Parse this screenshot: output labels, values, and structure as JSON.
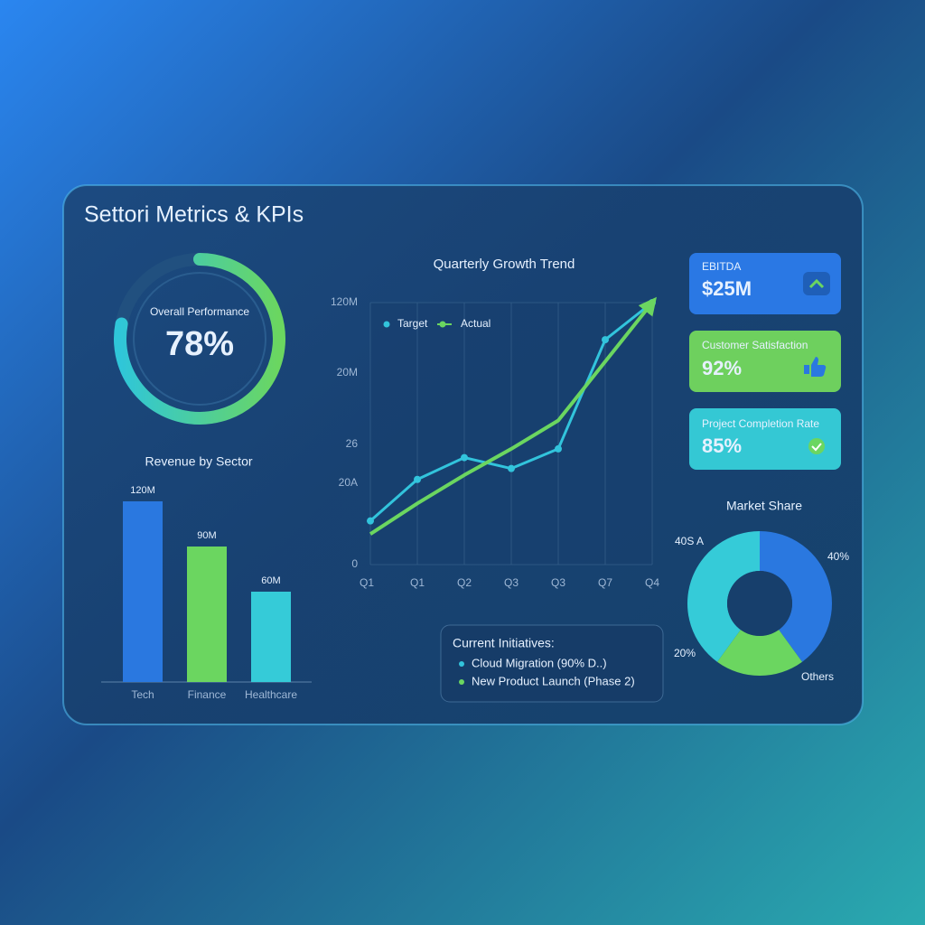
{
  "title": "Settori Metrics & KPIs",
  "chart_data": [
    {
      "type": "gauge",
      "title": "Overall Performance",
      "values": [
        78
      ],
      "value_labels": [
        "78%"
      ],
      "colors": [
        "#2fc6d9",
        "#6bd660"
      ]
    },
    {
      "type": "bar",
      "title": "Revenue by Sector",
      "categories": [
        "Tech",
        "Finance",
        "Healthcare"
      ],
      "values": [
        120,
        90,
        60
      ],
      "value_labels": [
        "120M",
        "90M",
        "60M"
      ],
      "colors": [
        "#2a78e0",
        "#6bd660",
        "#35cbd8"
      ]
    },
    {
      "type": "line",
      "title": "Quarterly Growth Trend",
      "categories": [
        "Q1",
        "Q1",
        "Q2",
        "Q3",
        "Q3",
        "Q7",
        "Q4"
      ],
      "series": [
        {
          "name": "Target",
          "color": "#32c4dc",
          "values": [
            20,
            39,
            49,
            44,
            53,
            103,
            120
          ]
        },
        {
          "name": "Actual",
          "color": "#6bd660",
          "values": [
            14,
            28,
            41,
            53,
            66,
            93,
            120
          ]
        }
      ],
      "ylim": [
        0,
        120
      ],
      "yticks": [
        {
          "value": 0,
          "label": "0"
        },
        {
          "value": 120,
          "label": "120M"
        }
      ],
      "y_annotations": [
        "20M",
        "26",
        "20A"
      ],
      "grid": true
    },
    {
      "type": "pie",
      "title": "Market Share",
      "categories": [
        "Others",
        null,
        null
      ],
      "values": [
        40,
        20,
        40
      ],
      "value_labels": [
        "40%",
        "20%",
        "40S A"
      ],
      "colors": [
        "#2a78e0",
        "#6bd660",
        "#35cbd8"
      ]
    }
  ],
  "kpis": [
    {
      "label": "EBITDA",
      "value": "$25M"
    },
    {
      "label": "Customer Satisfaction",
      "value": "92%"
    },
    {
      "label": "Project Completion Rate",
      "value": "85%"
    }
  ],
  "initiatives": {
    "title": "Current Initiatives:",
    "items": [
      "Cloud Migration (90% D..)",
      "New Product Launch (Phase 2)"
    ]
  }
}
